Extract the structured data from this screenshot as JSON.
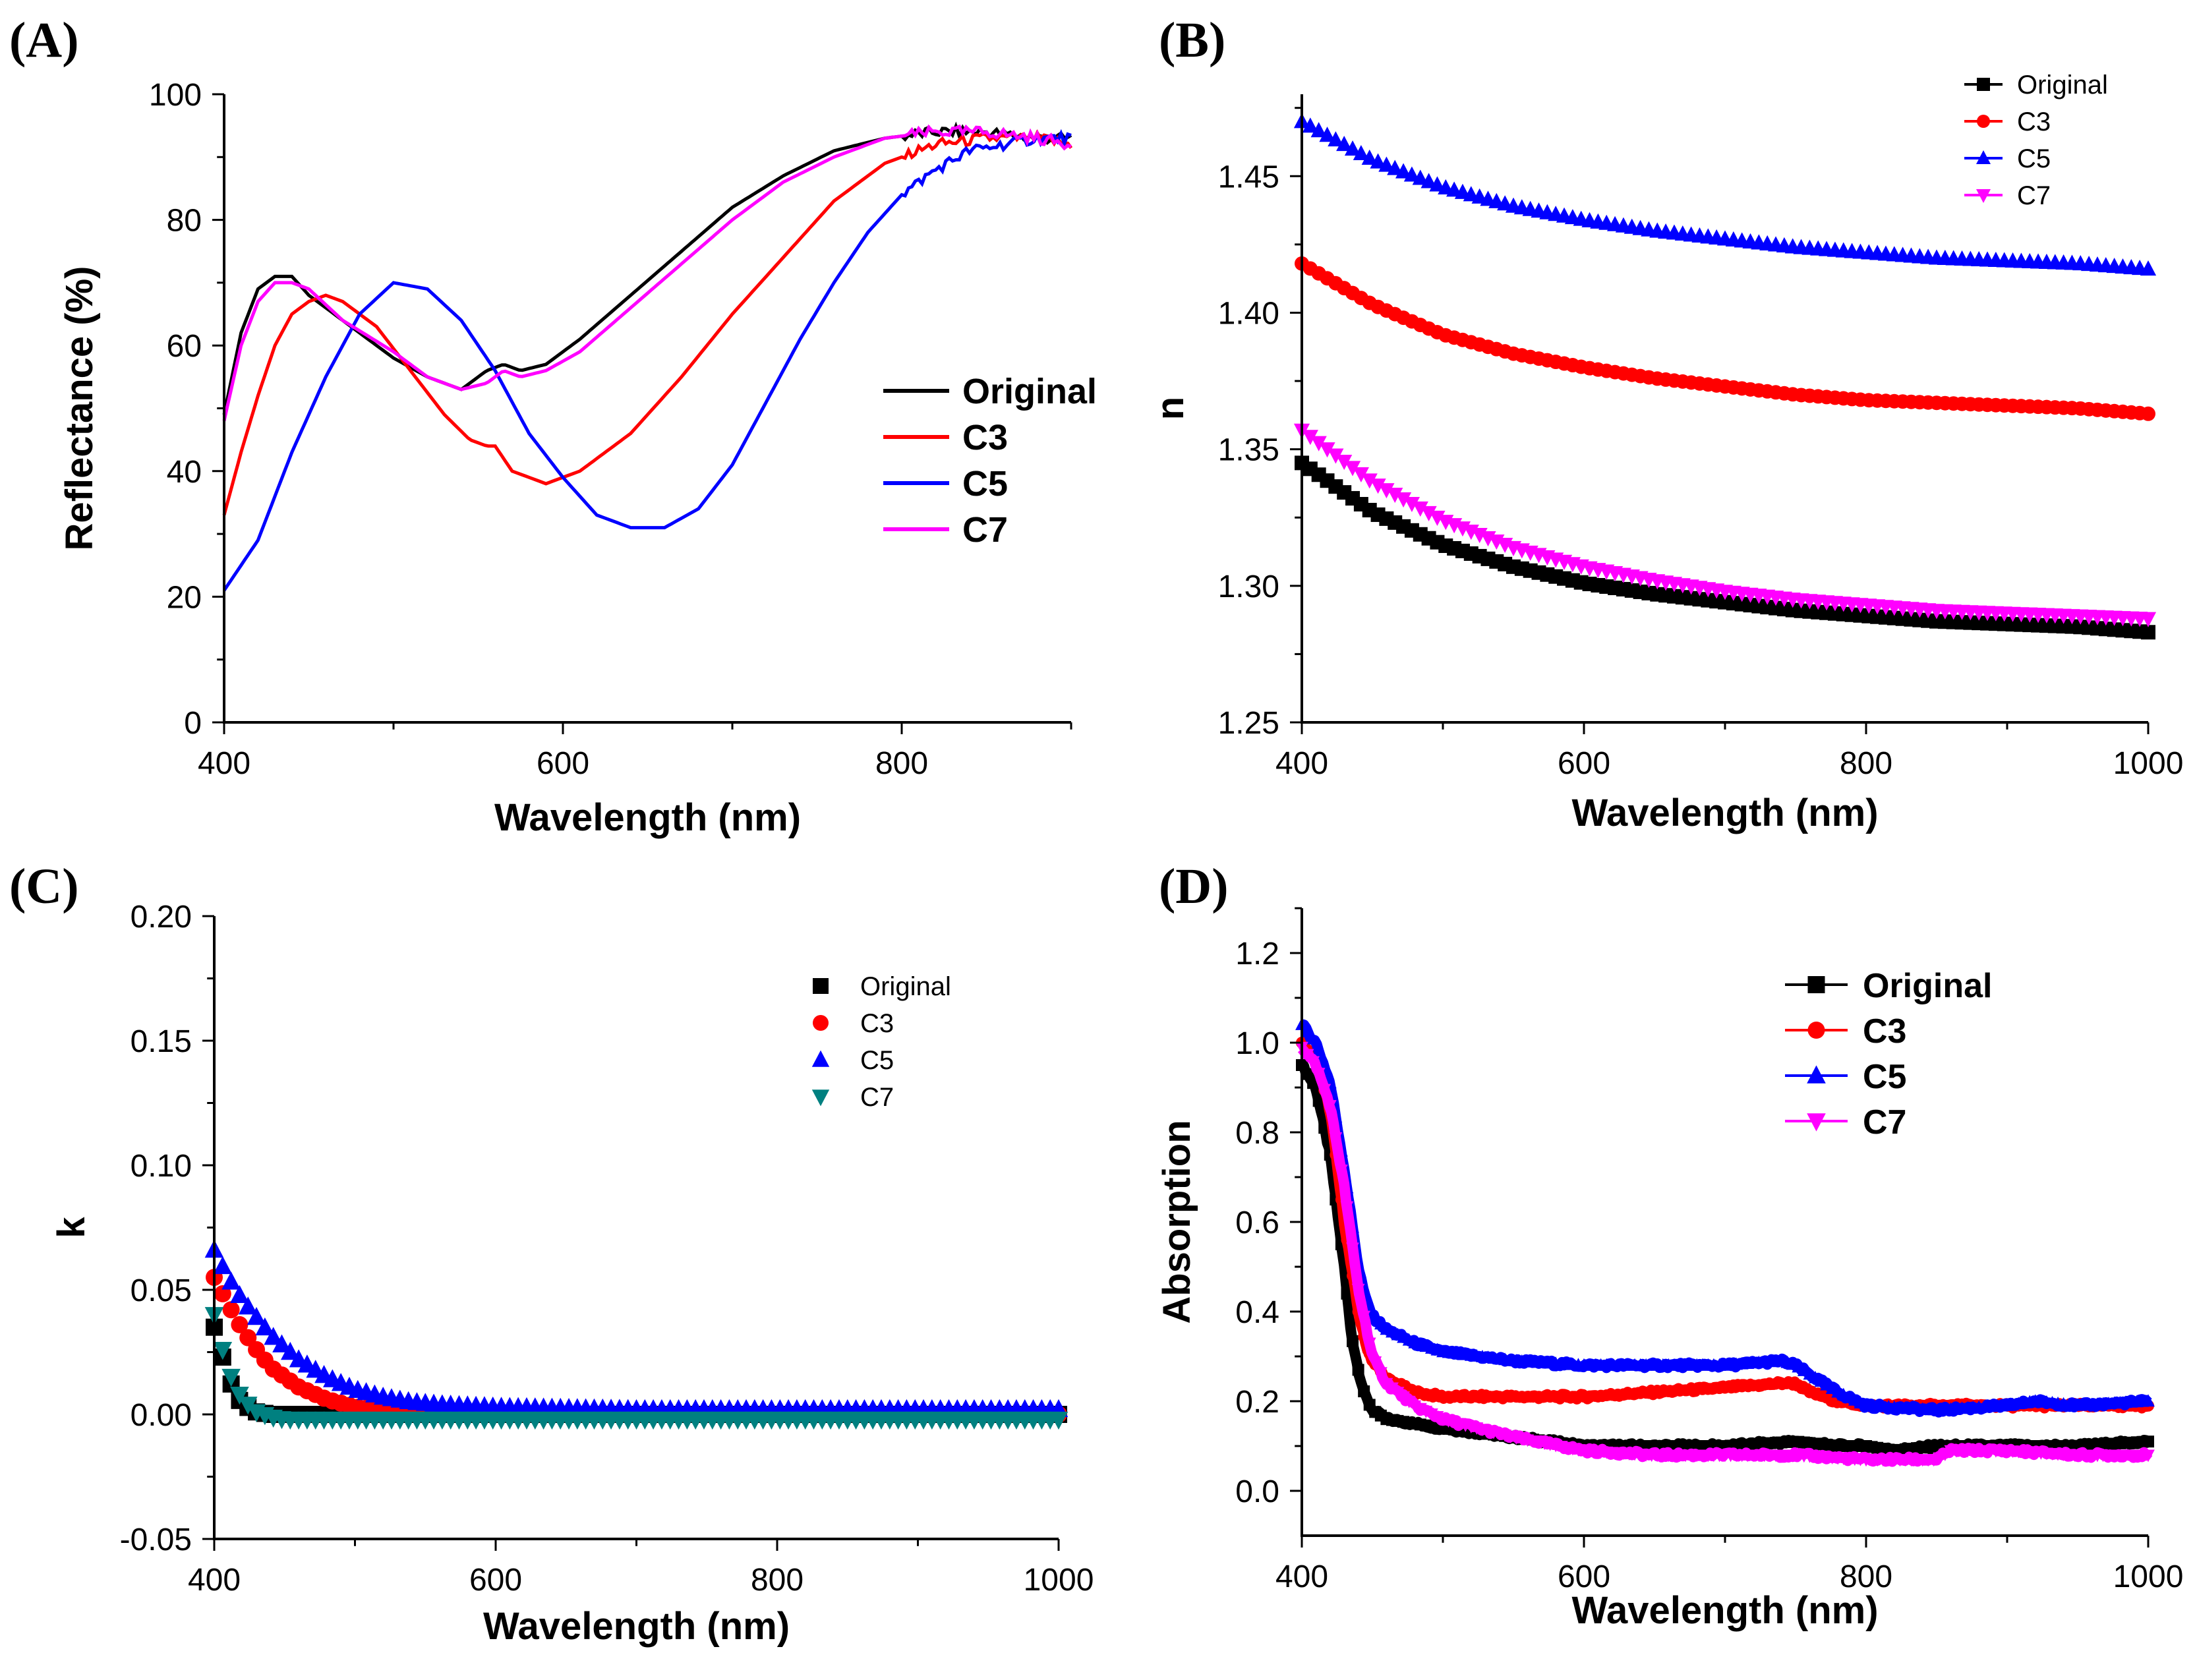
{
  "figure_title": "",
  "chart_data": [
    {
      "panel_label": "(A)",
      "type": "line",
      "title": "",
      "xlabel": "Wavelength (nm)",
      "ylabel": "Reflectance (%)",
      "xlim": [
        400,
        900
      ],
      "ylim": [
        0,
        100
      ],
      "xticks": [
        400,
        600,
        800
      ],
      "yticks": [
        0,
        20,
        40,
        60,
        80,
        100
      ],
      "legend_position": "center-right",
      "legend_style": "line",
      "series": [
        {
          "name": "Original",
          "color": "#000000",
          "x": [
            400,
            410,
            420,
            430,
            440,
            450,
            470,
            500,
            520,
            540,
            555,
            565,
            575,
            590,
            610,
            640,
            670,
            700,
            730,
            760,
            790,
            820,
            850,
            880,
            900
          ],
          "y": [
            49,
            62,
            69,
            71,
            71,
            68,
            64,
            58,
            55,
            53,
            56,
            57,
            56,
            57,
            61,
            68,
            75,
            82,
            87,
            91,
            93,
            94,
            94,
            93,
            93
          ]
        },
        {
          "name": "C3",
          "color": "#ff0000",
          "x": [
            400,
            410,
            420,
            430,
            440,
            450,
            460,
            470,
            490,
            510,
            530,
            545,
            555,
            560,
            570,
            590,
            610,
            640,
            670,
            700,
            730,
            760,
            790,
            820,
            850,
            880,
            900
          ],
          "y": [
            33,
            43,
            52,
            60,
            65,
            67,
            68,
            67,
            63,
            56,
            49,
            45,
            44,
            44,
            40,
            38,
            40,
            46,
            55,
            65,
            74,
            83,
            89,
            92,
            93,
            93,
            92
          ]
        },
        {
          "name": "C5",
          "color": "#0000ff",
          "x": [
            400,
            420,
            440,
            460,
            480,
            500,
            520,
            540,
            560,
            580,
            600,
            620,
            640,
            660,
            680,
            700,
            720,
            740,
            760,
            780,
            800,
            820,
            840,
            860,
            880,
            900
          ],
          "y": [
            21,
            29,
            43,
            55,
            65,
            70,
            69,
            64,
            56,
            46,
            39,
            33,
            31,
            31,
            34,
            41,
            51,
            61,
            70,
            78,
            84,
            88,
            91,
            92,
            93,
            93
          ]
        },
        {
          "name": "C7",
          "color": "#ff00ff",
          "x": [
            400,
            410,
            420,
            430,
            440,
            450,
            470,
            500,
            520,
            540,
            555,
            565,
            575,
            590,
            610,
            640,
            670,
            700,
            730,
            760,
            790,
            820,
            850,
            880,
            900
          ],
          "y": [
            48,
            60,
            67,
            70,
            70,
            69,
            64,
            59,
            55,
            53,
            54,
            56,
            55,
            56,
            59,
            66,
            73,
            80,
            86,
            90,
            93,
            94,
            94,
            93,
            92
          ]
        }
      ]
    },
    {
      "panel_label": "(B)",
      "type": "scatter",
      "title": "",
      "xlabel": "Wavelength (nm)",
      "ylabel": "n",
      "xlim": [
        400,
        1000
      ],
      "ylim": [
        1.25,
        1.48
      ],
      "xticks": [
        400,
        600,
        800,
        1000
      ],
      "yticks": [
        "1.25",
        "1.30",
        "1.35",
        "1.40",
        "1.45"
      ],
      "legend_position": "top-right",
      "legend_style": "line-marker",
      "series": [
        {
          "name": "Original",
          "color": "#000000",
          "marker": "square",
          "x": [
            400,
            450,
            500,
            550,
            600,
            650,
            700,
            750,
            800,
            850,
            900,
            950,
            1000
          ],
          "y": [
            1.345,
            1.327,
            1.315,
            1.307,
            1.301,
            1.297,
            1.294,
            1.291,
            1.289,
            1.287,
            1.286,
            1.285,
            1.283
          ]
        },
        {
          "name": "C3",
          "color": "#ff0000",
          "marker": "circle",
          "x": [
            400,
            450,
            500,
            550,
            600,
            650,
            700,
            750,
            800,
            850,
            900,
            950,
            1000
          ],
          "y": [
            1.418,
            1.403,
            1.392,
            1.385,
            1.38,
            1.376,
            1.373,
            1.37,
            1.368,
            1.367,
            1.366,
            1.365,
            1.363
          ]
        },
        {
          "name": "C5",
          "color": "#0000ff",
          "marker": "triangle-up",
          "x": [
            400,
            450,
            500,
            550,
            600,
            650,
            700,
            750,
            800,
            850,
            900,
            950,
            1000
          ],
          "y": [
            1.47,
            1.456,
            1.446,
            1.439,
            1.434,
            1.43,
            1.427,
            1.424,
            1.422,
            1.42,
            1.419,
            1.418,
            1.416
          ]
        },
        {
          "name": "C7",
          "color": "#ff00ff",
          "marker": "triangle-down",
          "x": [
            400,
            450,
            500,
            550,
            600,
            650,
            700,
            750,
            800,
            850,
            900,
            950,
            1000
          ],
          "y": [
            1.357,
            1.338,
            1.324,
            1.314,
            1.307,
            1.302,
            1.298,
            1.295,
            1.293,
            1.291,
            1.29,
            1.289,
            1.288
          ]
        }
      ]
    },
    {
      "panel_label": "(C)",
      "type": "scatter",
      "title": "",
      "xlabel": "Wavelength (nm)",
      "ylabel": "k",
      "xlim": [
        400,
        1000
      ],
      "ylim": [
        -0.05,
        0.2
      ],
      "xticks": [
        400,
        600,
        800,
        1000
      ],
      "yticks": [
        "-0.05",
        "0.00",
        "0.05",
        "0.10",
        "0.15",
        "0.20"
      ],
      "legend_position": "top-right",
      "legend_style": "marker",
      "series": [
        {
          "name": "Original",
          "color": "#000000",
          "marker": "square",
          "x": [
            400,
            405,
            410,
            415,
            420,
            430,
            440,
            460,
            500,
            600,
            800,
            1000
          ],
          "y": [
            0.035,
            0.025,
            0.015,
            0.008,
            0.004,
            0.001,
            0.0,
            0.0,
            0.0,
            0.0,
            0.0,
            0.0
          ]
        },
        {
          "name": "C3",
          "color": "#ff0000",
          "marker": "circle",
          "x": [
            400,
            410,
            420,
            430,
            440,
            460,
            480,
            500,
            520,
            540,
            560,
            600,
            800,
            1000
          ],
          "y": [
            0.055,
            0.044,
            0.034,
            0.026,
            0.019,
            0.011,
            0.006,
            0.003,
            0.0015,
            0.0008,
            0.0004,
            0.0,
            0.0,
            0.0
          ]
        },
        {
          "name": "C5",
          "color": "#0000ff",
          "marker": "triangle-up",
          "x": [
            400,
            410,
            420,
            440,
            460,
            480,
            500,
            520,
            540,
            560,
            600,
            700,
            800,
            1000
          ],
          "y": [
            0.066,
            0.055,
            0.046,
            0.032,
            0.022,
            0.015,
            0.01,
            0.007,
            0.005,
            0.004,
            0.003,
            0.002,
            0.002,
            0.002
          ]
        },
        {
          "name": "C7",
          "color": "#008080",
          "marker": "triangle-down",
          "x": [
            400,
            405,
            410,
            415,
            420,
            430,
            440,
            450,
            460,
            480,
            500,
            600,
            800,
            1000
          ],
          "y": [
            0.04,
            0.028,
            0.018,
            0.011,
            0.006,
            0.001,
            -0.001,
            -0.002,
            -0.002,
            -0.002,
            -0.002,
            -0.002,
            -0.002,
            -0.002
          ]
        }
      ]
    },
    {
      "panel_label": "(D)",
      "type": "line",
      "title": "",
      "xlabel": "Wavelength (nm)",
      "ylabel": "Absorption",
      "xlim": [
        400,
        1000
      ],
      "ylim": [
        -0.1,
        1.3
      ],
      "xticks": [
        400,
        600,
        800,
        1000
      ],
      "yticks": [
        "0.0",
        "0.2",
        "0.4",
        "0.6",
        "0.8",
        "1.0",
        "1.2"
      ],
      "legend_position": "top-right",
      "legend_style": "line-marker",
      "series": [
        {
          "name": "Original",
          "color": "#000000",
          "marker": "square",
          "x": [
            400,
            410,
            420,
            430,
            435,
            440,
            445,
            450,
            460,
            480,
            500,
            550,
            600,
            650,
            700,
            750,
            780,
            800,
            820,
            850,
            900,
            950,
            1000
          ],
          "y": [
            0.95,
            0.9,
            0.75,
            0.5,
            0.35,
            0.27,
            0.21,
            0.18,
            0.16,
            0.15,
            0.14,
            0.12,
            0.1,
            0.1,
            0.1,
            0.11,
            0.1,
            0.1,
            0.09,
            0.1,
            0.1,
            0.1,
            0.11
          ]
        },
        {
          "name": "C3",
          "color": "#ff0000",
          "marker": "circle",
          "x": [
            400,
            410,
            420,
            430,
            440,
            445,
            450,
            460,
            480,
            500,
            550,
            600,
            650,
            700,
            740,
            750,
            760,
            780,
            800,
            850,
            900,
            950,
            1000
          ],
          "y": [
            1.0,
            0.96,
            0.85,
            0.6,
            0.4,
            0.33,
            0.29,
            0.25,
            0.22,
            0.21,
            0.21,
            0.21,
            0.22,
            0.23,
            0.24,
            0.24,
            0.22,
            0.2,
            0.19,
            0.19,
            0.19,
            0.19,
            0.19
          ]
        },
        {
          "name": "C5",
          "color": "#0000ff",
          "marker": "triangle-up",
          "x": [
            400,
            410,
            420,
            430,
            440,
            445,
            450,
            460,
            480,
            500,
            550,
            600,
            650,
            700,
            740,
            750,
            760,
            780,
            800,
            850,
            900,
            920,
            950,
            1000
          ],
          "y": [
            1.04,
            1.0,
            0.91,
            0.72,
            0.5,
            0.43,
            0.39,
            0.36,
            0.33,
            0.31,
            0.29,
            0.28,
            0.28,
            0.28,
            0.29,
            0.28,
            0.26,
            0.22,
            0.19,
            0.18,
            0.19,
            0.2,
            0.19,
            0.2
          ]
        },
        {
          "name": "C7",
          "color": "#ff00ff",
          "marker": "triangle-down",
          "x": [
            400,
            410,
            420,
            430,
            440,
            450,
            460,
            480,
            500,
            550,
            600,
            650,
            700,
            750,
            800,
            850,
            860,
            900,
            950,
            1000
          ],
          "y": [
            0.99,
            0.95,
            0.86,
            0.68,
            0.45,
            0.3,
            0.24,
            0.19,
            0.16,
            0.12,
            0.09,
            0.08,
            0.08,
            0.08,
            0.07,
            0.07,
            0.09,
            0.09,
            0.08,
            0.08
          ]
        }
      ]
    }
  ]
}
